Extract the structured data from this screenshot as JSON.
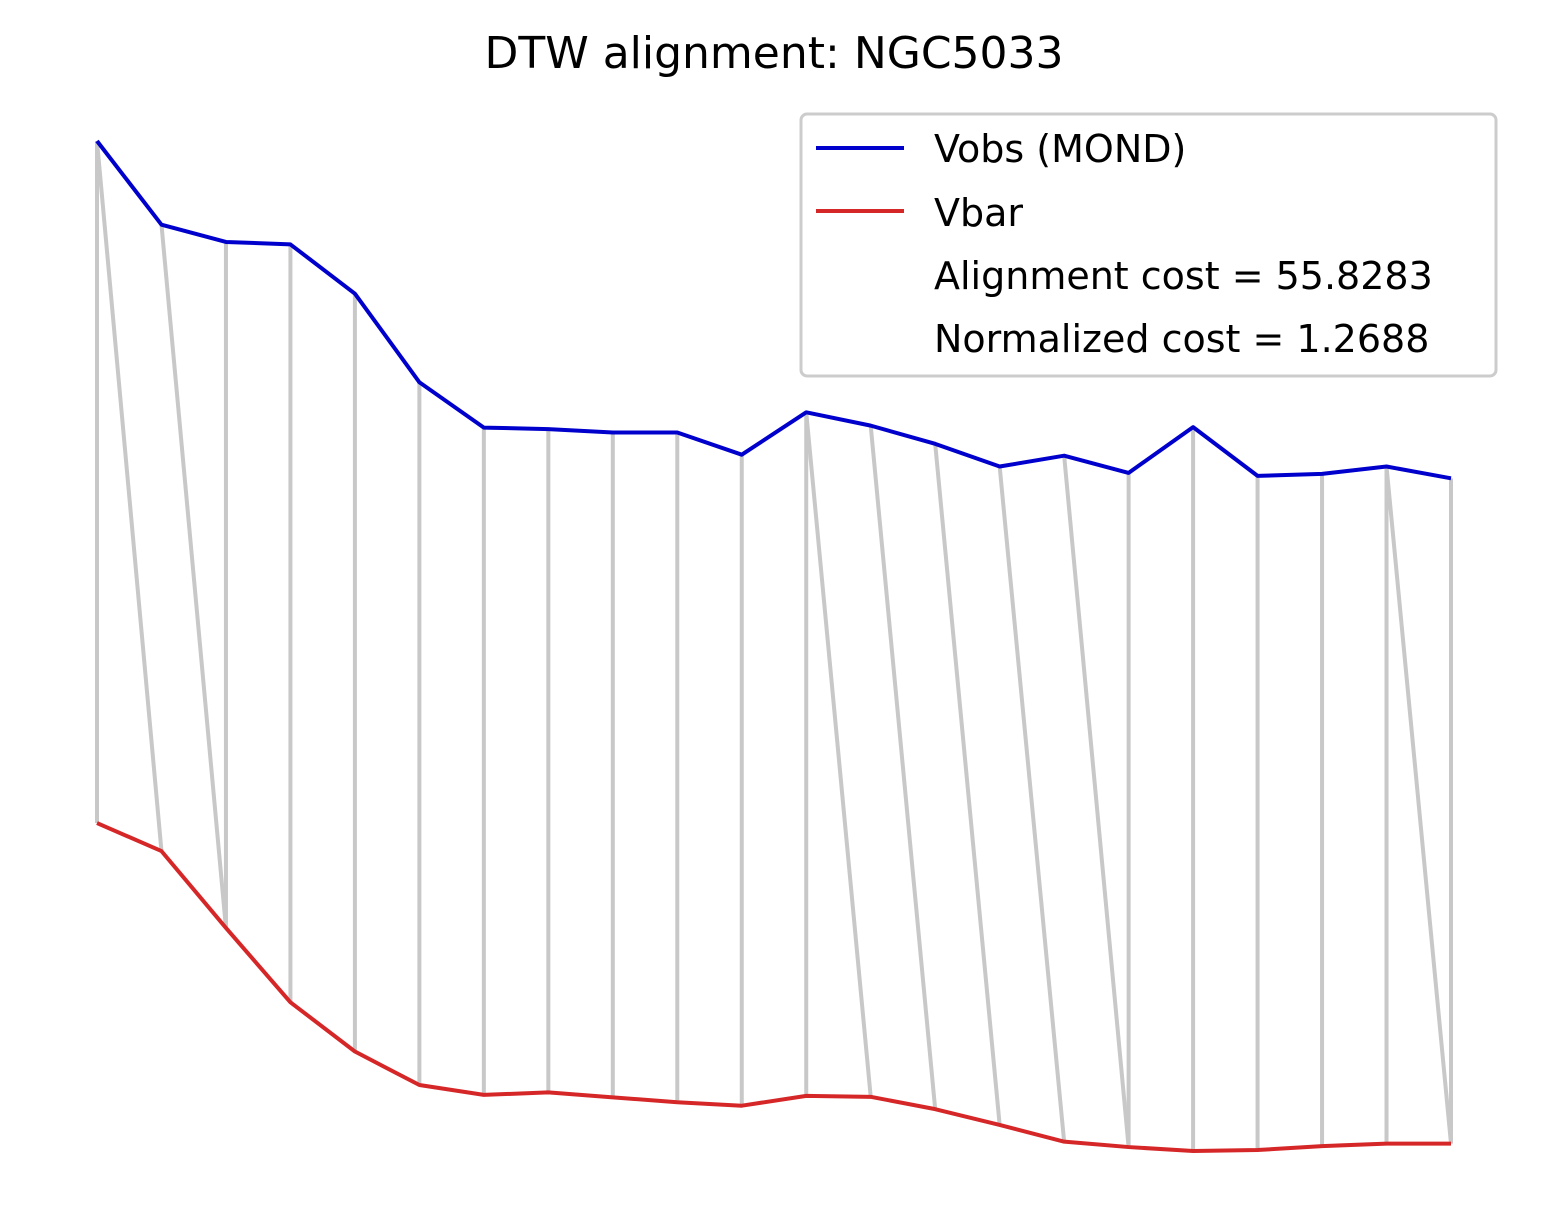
{
  "chart_data": {
    "type": "line",
    "title": "DTW alignment: NGC5033",
    "axes_visible": false,
    "grid": false,
    "legend_position": "top-right",
    "x": [
      0,
      1,
      2,
      3,
      4,
      5,
      6,
      7,
      8,
      9,
      10,
      11,
      12,
      13,
      14,
      15,
      16,
      17,
      18,
      19,
      20,
      21
    ],
    "series": [
      {
        "name": "Vobs (MOND)",
        "color": "#0000cc",
        "values": [
          1.5,
          1.33,
          1.295,
          1.29,
          1.19,
          1.01,
          0.918,
          0.915,
          0.908,
          0.908,
          0.863,
          0.949,
          0.922,
          0.885,
          0.839,
          0.861,
          0.826,
          0.919,
          0.82,
          0.824,
          0.839,
          0.815
        ]
      },
      {
        "name": "Vbar",
        "color": "#d62728",
        "values": [
          0.115,
          0.058,
          -0.098,
          -0.249,
          -0.349,
          -0.417,
          -0.437,
          -0.432,
          -0.442,
          -0.452,
          -0.459,
          -0.439,
          -0.441,
          -0.466,
          -0.498,
          -0.532,
          -0.543,
          -0.551,
          -0.549,
          -0.541,
          -0.536,
          -0.536
        ]
      }
    ],
    "alignment_pairs": [
      [
        0,
        0
      ],
      [
        0,
        1
      ],
      [
        1,
        2
      ],
      [
        2,
        2
      ],
      [
        3,
        3
      ],
      [
        4,
        4
      ],
      [
        5,
        5
      ],
      [
        6,
        6
      ],
      [
        7,
        7
      ],
      [
        8,
        8
      ],
      [
        9,
        9
      ],
      [
        10,
        10
      ],
      [
        11,
        11
      ],
      [
        11,
        12
      ],
      [
        12,
        13
      ],
      [
        13,
        14
      ],
      [
        14,
        15
      ],
      [
        15,
        16
      ],
      [
        16,
        16
      ],
      [
        17,
        17
      ],
      [
        18,
        18
      ],
      [
        19,
        19
      ],
      [
        20,
        20
      ],
      [
        20,
        21
      ],
      [
        21,
        21
      ]
    ],
    "alignment_color": "#c8c8c8",
    "annotations": [
      "Alignment cost = 55.8283",
      "Normalized cost = 1.2688"
    ]
  }
}
